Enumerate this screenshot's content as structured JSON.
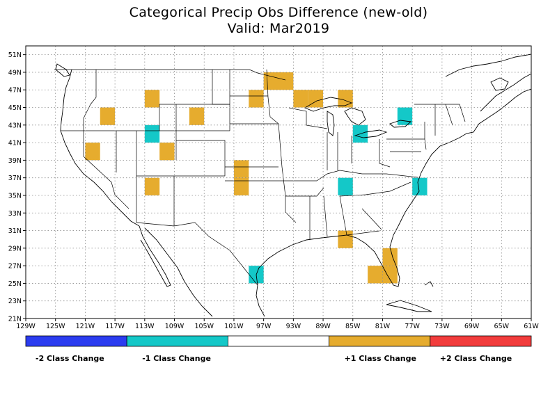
{
  "title": "Categorical Precip Obs Difference (new-old)",
  "subtitle": "Valid: Mar2019",
  "axes": {
    "lat_labels": [
      "21N",
      "23N",
      "25N",
      "27N",
      "29N",
      "31N",
      "33N",
      "35N",
      "37N",
      "39N",
      "41N",
      "43N",
      "45N",
      "47N",
      "49N",
      "51N"
    ],
    "lat_values": [
      21,
      23,
      25,
      27,
      29,
      31,
      33,
      35,
      37,
      39,
      41,
      43,
      45,
      47,
      49,
      51
    ],
    "lon_labels": [
      "129W",
      "125W",
      "121W",
      "117W",
      "113W",
      "109W",
      "105W",
      "101W",
      "97W",
      "93W",
      "89W",
      "85W",
      "81W",
      "77W",
      "73W",
      "69W",
      "65W",
      "61W"
    ],
    "lon_values": [
      -129,
      -125,
      -121,
      -117,
      -113,
      -109,
      -105,
      -101,
      -97,
      -93,
      -89,
      -85,
      -81,
      -77,
      -73,
      -69,
      -65,
      -61
    ],
    "lon_range": [
      -129,
      -61
    ],
    "lat_range": [
      21,
      52
    ],
    "grid": true
  },
  "legend": {
    "items": [
      {
        "label": "-2 Class Change",
        "color": "#2b3cf0",
        "value": -2
      },
      {
        "label": "-1 Class Change",
        "color": "#14c8c8",
        "value": -1
      },
      {
        "label": "",
        "color": "#ffffff",
        "value": 0
      },
      {
        "label": "+1 Class Change",
        "color": "#e6ac2e",
        "value": 1
      },
      {
        "label": "+2 Class Change",
        "color": "#f23c3c",
        "value": 2
      }
    ]
  },
  "chart_data": {
    "type": "heatmap",
    "cell_size_deg": 2,
    "colors": {
      "-1": "#14c8c8",
      "1": "#e6ac2e"
    },
    "cells": [
      {
        "lon0": -121,
        "lat0": 39,
        "value": 1
      },
      {
        "lon0": -119,
        "lat0": 43,
        "value": 1
      },
      {
        "lon0": -113,
        "lat0": 45,
        "value": 1
      },
      {
        "lon0": -113,
        "lat0": 41,
        "value": -1
      },
      {
        "lon0": -111,
        "lat0": 39,
        "value": 1
      },
      {
        "lon0": -113,
        "lat0": 35,
        "value": 1
      },
      {
        "lon0": -107,
        "lat0": 43,
        "value": 1
      },
      {
        "lon0": -101,
        "lat0": 37,
        "value": 1
      },
      {
        "lon0": -101,
        "lat0": 35,
        "value": 1
      },
      {
        "lon0": -99,
        "lat0": 45,
        "value": 1
      },
      {
        "lon0": -97,
        "lat0": 47,
        "value": 1
      },
      {
        "lon0": -95,
        "lat0": 47,
        "value": 1
      },
      {
        "lon0": -93,
        "lat0": 45,
        "value": 1
      },
      {
        "lon0": -91,
        "lat0": 45,
        "value": 1
      },
      {
        "lon0": -87,
        "lat0": 45,
        "value": 1
      },
      {
        "lon0": -85,
        "lat0": 41,
        "value": -1
      },
      {
        "lon0": -79,
        "lat0": 43,
        "value": -1
      },
      {
        "lon0": -87,
        "lat0": 35,
        "value": -1
      },
      {
        "lon0": -77,
        "lat0": 35,
        "value": -1
      },
      {
        "lon0": -87,
        "lat0": 29,
        "value": 1
      },
      {
        "lon0": -81,
        "lat0": 27,
        "value": 1
      },
      {
        "lon0": -83,
        "lat0": 25,
        "value": 1
      },
      {
        "lon0": -81,
        "lat0": 25,
        "value": 1
      },
      {
        "lon0": -99,
        "lat0": 25,
        "value": -1
      }
    ]
  }
}
